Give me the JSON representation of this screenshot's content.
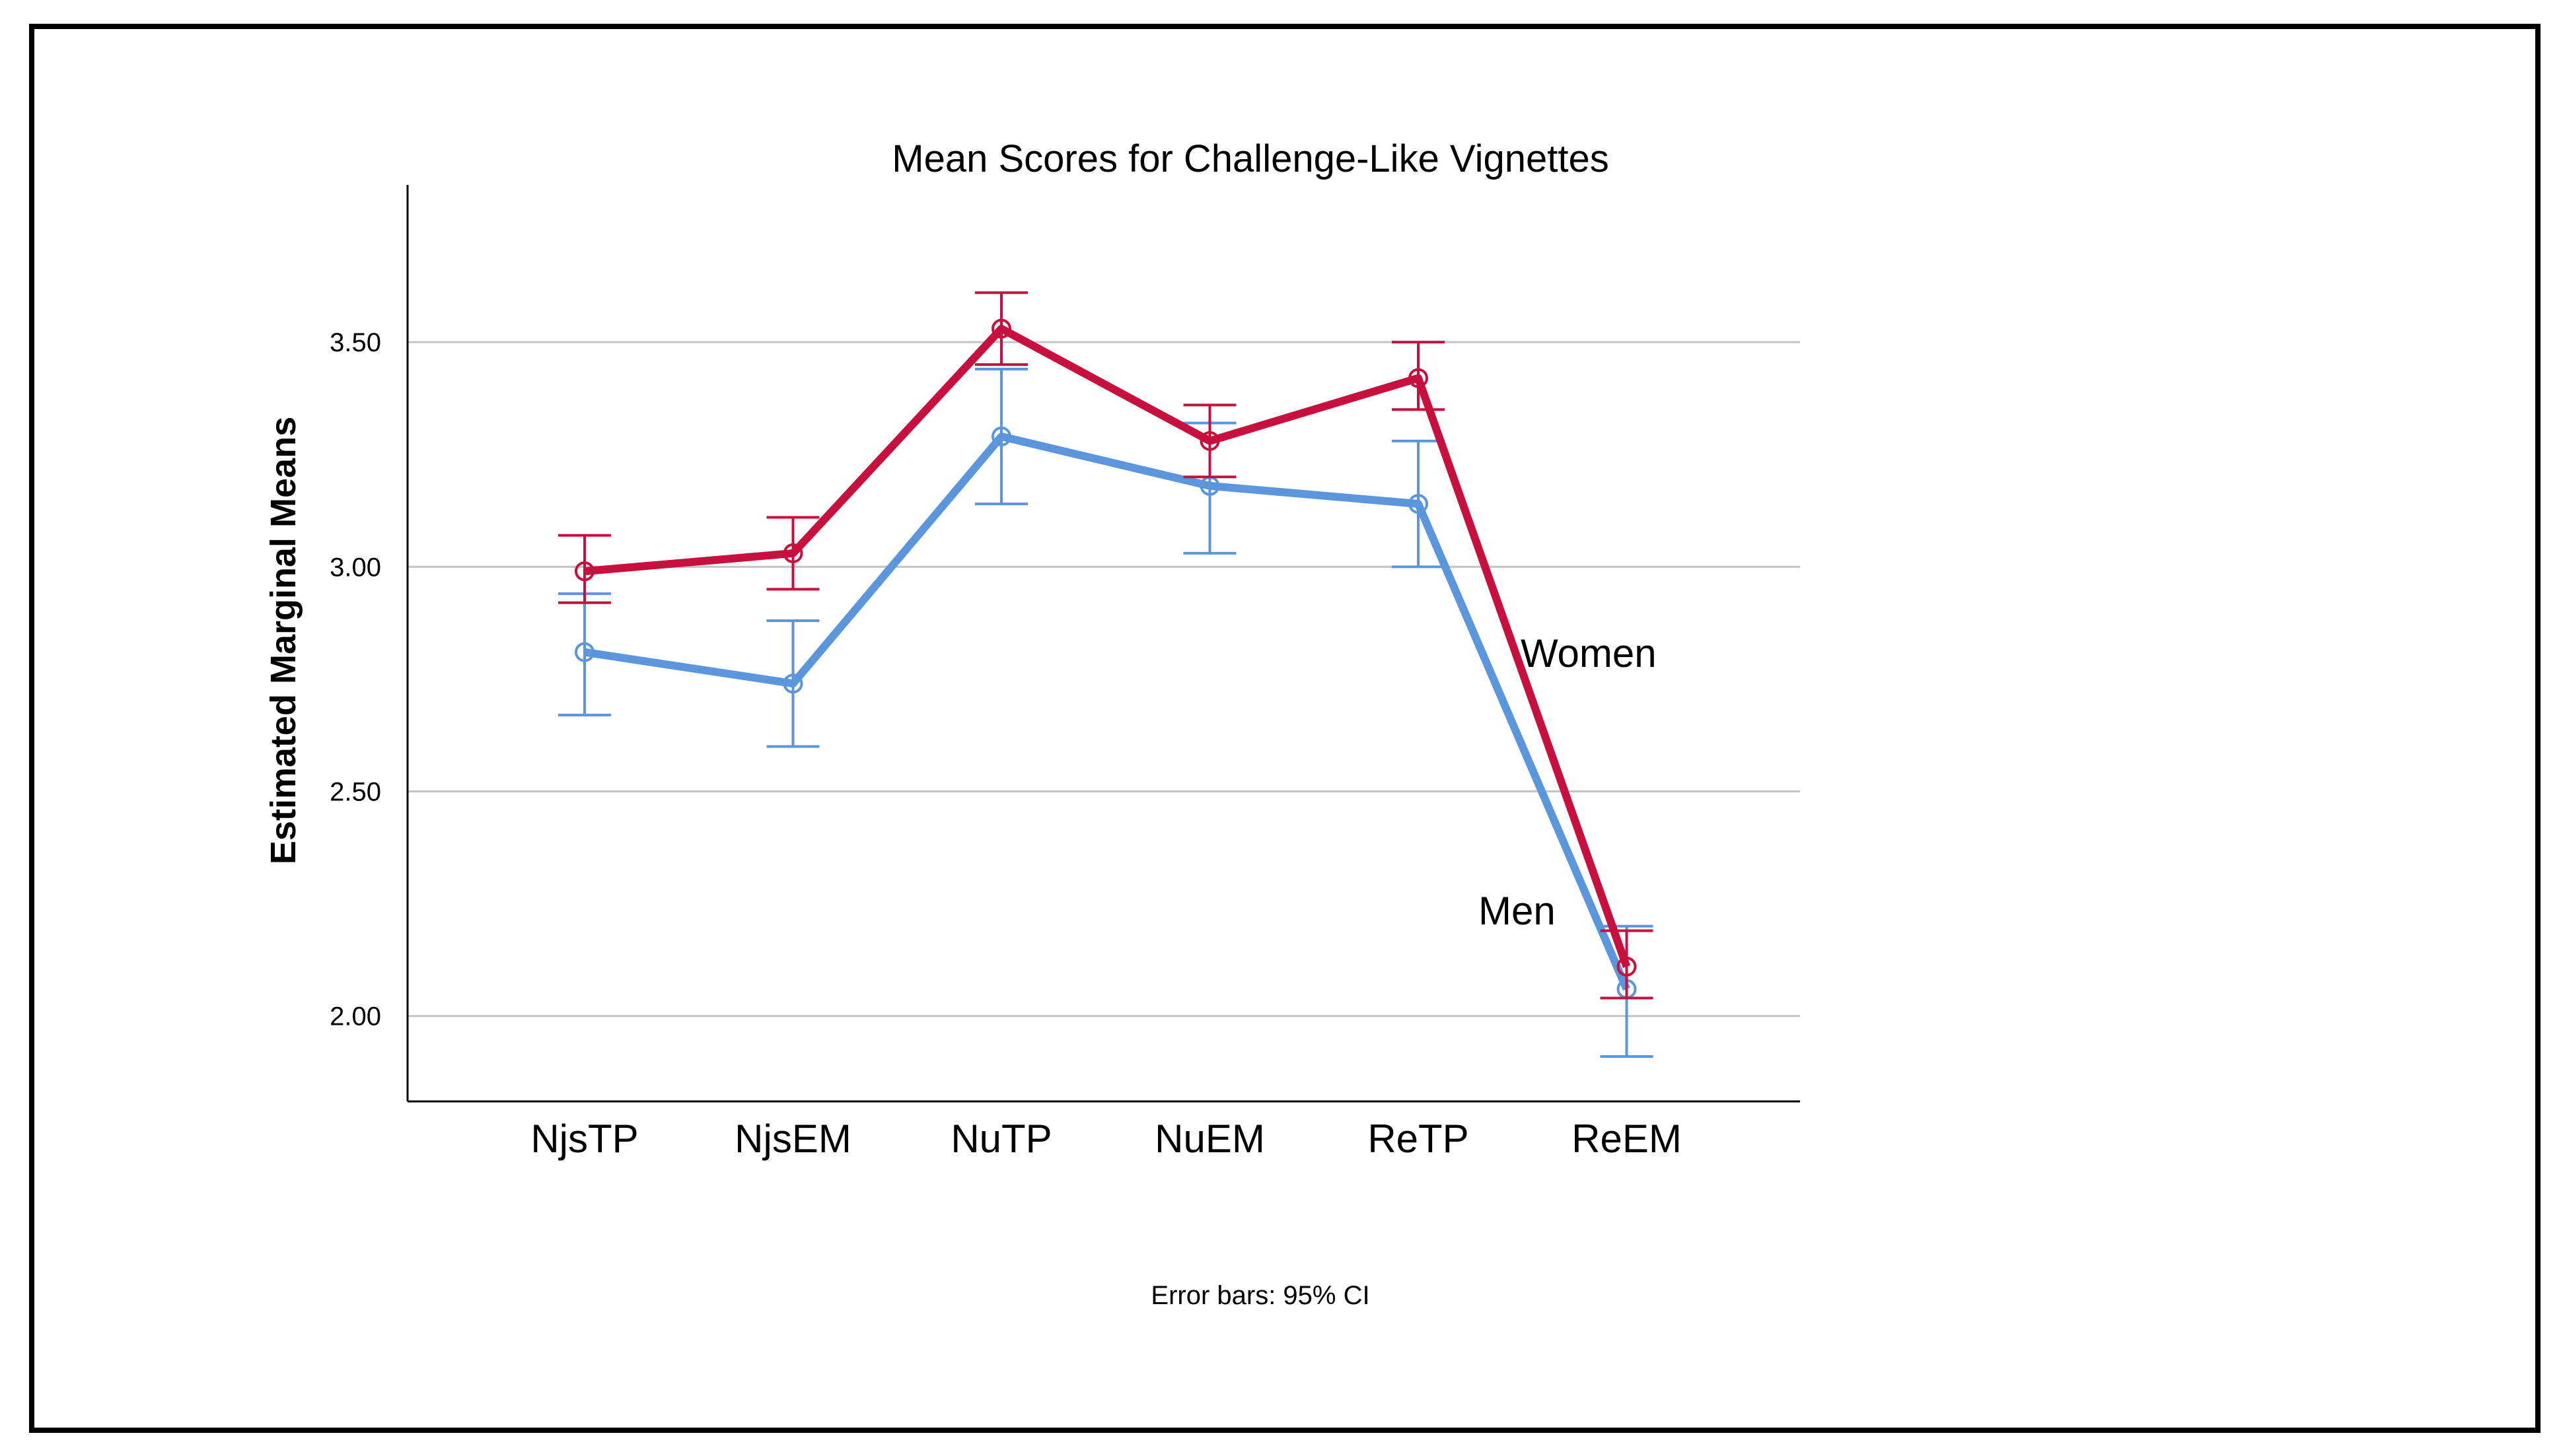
{
  "chart_data": {
    "type": "line",
    "title": "Mean Scores for Challenge-Like Vignettes",
    "xlabel": "",
    "ylabel": "Estimated Marginal Means",
    "ylim": [
      1.81,
      3.85
    ],
    "yticks": [
      2.0,
      2.5,
      3.0,
      3.5
    ],
    "ytick_labels": [
      "2.00",
      "2.50",
      "3.00",
      "3.50"
    ],
    "grid": true,
    "categories": [
      "NjsTP",
      "NjsEM",
      "NuTP",
      "NuEM",
      "ReTP",
      "ReEM"
    ],
    "series": [
      {
        "name": "Women",
        "color": "#c8103e",
        "values": [
          2.99,
          3.03,
          3.53,
          3.28,
          3.42,
          2.11
        ],
        "ci_low": [
          2.92,
          2.95,
          3.45,
          3.2,
          3.35,
          2.04
        ],
        "ci_high": [
          3.07,
          3.11,
          3.61,
          3.36,
          3.5,
          2.19
        ]
      },
      {
        "name": "Men",
        "color": "#5b96dc",
        "values": [
          2.81,
          2.74,
          3.29,
          3.18,
          3.14,
          2.06
        ],
        "ci_low": [
          2.67,
          2.6,
          3.14,
          3.03,
          3.0,
          1.91
        ],
        "ci_high": [
          2.94,
          2.88,
          3.44,
          3.32,
          3.28,
          2.2
        ]
      }
    ],
    "annotations": [
      "Women",
      "Men"
    ],
    "footnote": "Error bars: 95% CI"
  }
}
